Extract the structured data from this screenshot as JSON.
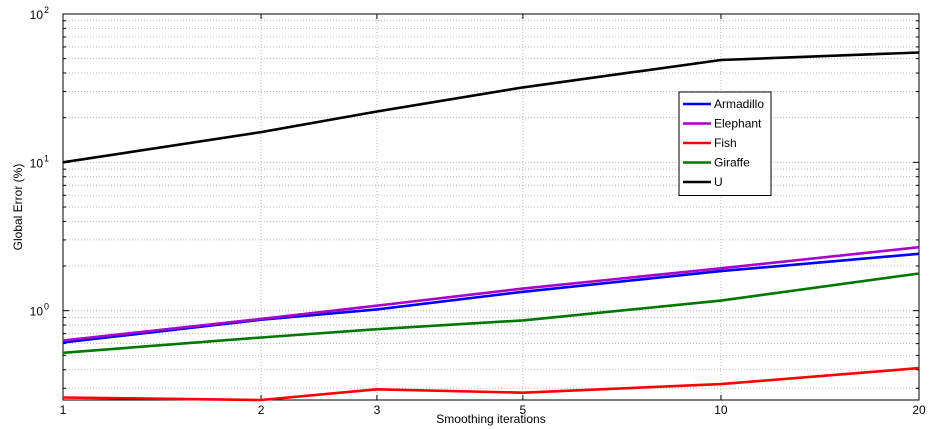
{
  "chart_data": {
    "type": "line",
    "title": "",
    "xlabel": "Smoothing iterations",
    "ylabel": "Global Error (%)",
    "x": [
      1,
      2,
      3,
      5,
      10,
      20
    ],
    "xticks": [
      "1",
      "2",
      "3",
      "5",
      "10",
      "20"
    ],
    "xlim": [
      1,
      20
    ],
    "yscale": "log",
    "ylim": [
      0.25,
      100
    ],
    "yticks": [
      {
        "value": 1,
        "base": "10",
        "exp": "0"
      },
      {
        "value": 10,
        "base": "10",
        "exp": "1"
      },
      {
        "value": 100,
        "base": "10",
        "exp": "2"
      }
    ],
    "grid": true,
    "legend_position": "upper-right",
    "series": [
      {
        "name": "Armadillo",
        "color": "#0000ff",
        "values": [
          0.61,
          0.87,
          1.02,
          1.34,
          1.85,
          2.42
        ]
      },
      {
        "name": "Elephant",
        "color": "#aa00cc",
        "values": [
          0.63,
          0.88,
          1.08,
          1.41,
          1.93,
          2.68
        ]
      },
      {
        "name": "Fish",
        "color": "#ff0000",
        "values": [
          0.26,
          0.25,
          0.295,
          0.28,
          0.32,
          0.41
        ]
      },
      {
        "name": "Giraffe",
        "color": "#007700",
        "values": [
          0.52,
          0.66,
          0.75,
          0.86,
          1.17,
          1.78
        ]
      },
      {
        "name": "U",
        "color": "#000000",
        "values": [
          10,
          16,
          22,
          32,
          49,
          55
        ]
      }
    ]
  }
}
